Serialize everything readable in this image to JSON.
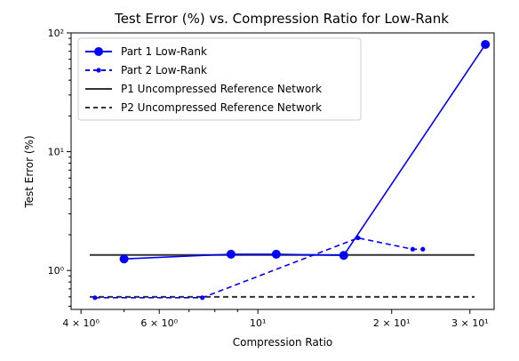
{
  "chart_data": {
    "type": "line",
    "title": "Test Error (%) vs. Compression Ratio for Low-Rank",
    "xlabel": "Compression Ratio",
    "ylabel": "Test Error (%)",
    "xscale": "log",
    "yscale": "log",
    "xlim": [
      3.8,
      34
    ],
    "ylim": [
      0.47,
      100
    ],
    "x_ticks": [
      {
        "value": 4,
        "label": "4 × 10⁰"
      },
      {
        "value": 6,
        "label": "6 × 10⁰"
      },
      {
        "value": 10,
        "label": "10¹"
      },
      {
        "value": 20,
        "label": "2 × 10¹"
      },
      {
        "value": 30,
        "label": "3 × 10¹"
      }
    ],
    "y_ticks": [
      {
        "value": 1,
        "label": "10⁰"
      },
      {
        "value": 10,
        "label": "10¹"
      },
      {
        "value": 100,
        "label": "10²"
      }
    ],
    "grid": false,
    "legend_position": "top-left",
    "series": [
      {
        "name": "Part 1 Low-Rank",
        "color": "#0000ff",
        "style": "solid",
        "marker": "circle",
        "x": [
          5.0,
          8.7,
          11.0,
          15.6,
          32.5
        ],
        "y": [
          1.25,
          1.37,
          1.37,
          1.34,
          80
        ]
      },
      {
        "name": "Part 2 Low-Rank",
        "color": "#0000ff",
        "style": "dashed",
        "marker": "point",
        "x": [
          4.3,
          7.5,
          16.8,
          22.3,
          23.5
        ],
        "y": [
          0.59,
          0.59,
          1.88,
          1.51,
          1.51
        ]
      }
    ],
    "reference_lines": [
      {
        "name": "P1 Uncompressed Reference Network",
        "y": 1.35,
        "color": "#333333",
        "style": "solid"
      },
      {
        "name": "P2 Uncompressed Reference Network",
        "y": 0.6,
        "color": "#333333",
        "style": "dashed"
      }
    ]
  }
}
